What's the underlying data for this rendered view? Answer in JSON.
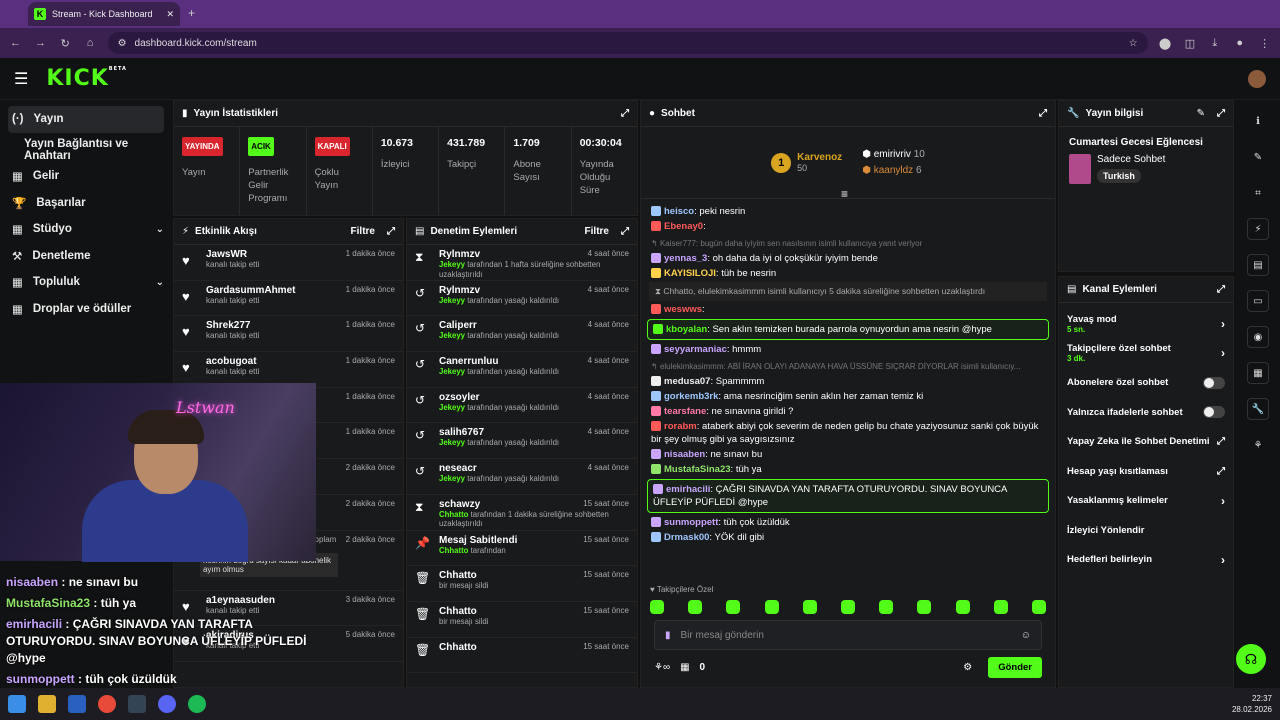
{
  "browser": {
    "tab_title": "Stream - Kick Dashboard",
    "url": "dashboard.kick.com/stream"
  },
  "header": {
    "logo": "KICK",
    "logo_tag": "BETA"
  },
  "nav": {
    "items": [
      {
        "label": "Yayın",
        "icon": "(·)"
      },
      {
        "label": "Yayın Bağlantısı ve Anahtarı",
        "icon": ""
      },
      {
        "label": "Gelir",
        "icon": "▦"
      },
      {
        "label": "Başarılar",
        "icon": "🏆"
      },
      {
        "label": "Stüdyo",
        "icon": "▦"
      },
      {
        "label": "Denetleme",
        "icon": "⚒"
      },
      {
        "label": "Topluluk",
        "icon": "▦"
      },
      {
        "label": "Droplar ve ödüller",
        "icon": "▦"
      }
    ]
  },
  "stats": {
    "title": "Yayın İstatistikleri",
    "cols": [
      {
        "badge": "YAYINDA",
        "badge_color": "#d9252d",
        "label": "Yayın"
      },
      {
        "badge": "ACIK",
        "badge_color": "#53fc18",
        "label": "Partnerlik Gelir Programı"
      },
      {
        "badge": "KAPALI",
        "badge_color": "#d9252d",
        "label": "Çoklu Yayın"
      },
      {
        "value": "10.673",
        "label": "İzleyici"
      },
      {
        "value": "431.789",
        "label": "Takipçi"
      },
      {
        "value": "1.709",
        "label": "Abone Sayısı"
      },
      {
        "value": "00:30:04",
        "label": "Yayında Olduğu Süre"
      }
    ]
  },
  "activity": {
    "title": "Etkinlik Akışı",
    "filter": "Filtre",
    "rows": [
      {
        "name": "JawsWR",
        "sub": "kanalı takip etti",
        "time": "1 dakika önce"
      },
      {
        "name": "GardasummAhmet",
        "sub": "kanalı takip etti",
        "time": "1 dakika önce"
      },
      {
        "name": "Shrek277",
        "sub": "kanalı takip etti",
        "time": "1 dakika önce"
      },
      {
        "name": "acobugoat",
        "sub": "kanalı takip etti",
        "time": "1 dakika önce"
      },
      {
        "name": "",
        "sub": "",
        "time": "1 dakika önce"
      },
      {
        "name": "",
        "sub": "",
        "time": "1 dakika önce"
      },
      {
        "name": "",
        "sub": "",
        "time": "2 dakika önce"
      },
      {
        "name": "",
        "sub": "",
        "time": "2 dakika önce"
      },
      {
        "name": "",
        "sub": "",
        "time": "2 dakika önce"
      },
      {
        "name": "a1eynaasuden",
        "sub": "kanalı takip etti",
        "time": "3 dakika önce"
      },
      {
        "name": "akiradirus",
        "sub": "kanalı takip etti",
        "time": "5 dakika önce"
      }
    ],
    "sub_note": "abonelik yenilemesini kutluyor! Toplam abonelik süresi - 25 ay!",
    "sub_msg": "nesrinin doğru sayısı kadar abonelik ayım olmus"
  },
  "moderation": {
    "title": "Denetim Eylemleri",
    "filter": "Filtre",
    "rows": [
      {
        "icon": "⧗",
        "name": "Rylnmzv",
        "by": "Jekeyy",
        "sub": "tarafından 1 hafta süreliğine sohbetten uzaklaştırıldı",
        "time": "4 saat önce"
      },
      {
        "icon": "↺",
        "name": "Rylnmzv",
        "by": "Jekeyy",
        "sub": "tarafından yasağı kaldırıldı",
        "time": "4 saat önce"
      },
      {
        "icon": "↺",
        "name": "Caliperr",
        "by": "Jekeyy",
        "sub": "tarafından yasağı kaldırıldı",
        "time": "4 saat önce"
      },
      {
        "icon": "↺",
        "name": "Canerrunluu",
        "by": "Jekeyy",
        "sub": "tarafından yasağı kaldırıldı",
        "time": "4 saat önce"
      },
      {
        "icon": "↺",
        "name": "ozsoyler",
        "by": "Jekeyy",
        "sub": "tarafından yasağı kaldırıldı",
        "time": "4 saat önce"
      },
      {
        "icon": "↺",
        "name": "salih6767",
        "by": "Jekeyy",
        "sub": "tarafından yasağı kaldırıldı",
        "time": "4 saat önce"
      },
      {
        "icon": "↺",
        "name": "neseacr",
        "by": "Jekeyy",
        "sub": "tarafından yasağı kaldırıldı",
        "time": "4 saat önce"
      },
      {
        "icon": "⧗",
        "name": "schawzy",
        "by": "Chhatto",
        "sub": "tarafından 1 dakika süreliğine sohbetten uzaklaştırıldı",
        "time": "15 saat önce"
      },
      {
        "icon": "📌",
        "name": "Mesaj Sabitlendi",
        "by": "Chhatto",
        "sub": "tarafından",
        "time": "15 saat önce"
      },
      {
        "icon": "🗑",
        "name": "Chhatto",
        "by": "",
        "sub": "bir mesajı sildi",
        "time": "15 saat önce"
      },
      {
        "icon": "🗑",
        "name": "Chhatto",
        "by": "",
        "sub": "bir mesajı sildi",
        "time": "15 saat önce"
      },
      {
        "icon": "🗑",
        "name": "Chhatto",
        "by": "",
        "sub": "",
        "time": "15 saat önce"
      }
    ]
  },
  "chat": {
    "title": "Sohbet",
    "leader": {
      "name": "Karvenoz",
      "value": "50"
    },
    "top2": {
      "name": "emirivriv",
      "value": "10"
    },
    "top3": {
      "name": "kaanyldz",
      "value": "6"
    },
    "messages": [
      {
        "user": "heisco",
        "color": "#9ec7ff",
        "text": "peki nesrin"
      },
      {
        "user": "Ebenay0",
        "color": "#ff5a5a",
        "text": ""
      },
      {
        "reply": "Kaiser777: bugün daha iyiyim sen nasılsının isimli kullanıcıya yanıt veriyor"
      },
      {
        "user": "yennas_3",
        "color": "#c9a5ff",
        "text": "oh daha da iyi ol çokşükür iyiyim bende"
      },
      {
        "user": "KAYISILOJI",
        "color": "#ffd24d",
        "text": "tüh be nesrin"
      },
      {
        "sys": "Chhatto, elulekimkasimmm isimli kullanıcıyı 5 dakika süreliğine sohbetten uzaklaştırdı"
      },
      {
        "user": "weswws",
        "color": "#ff5a5a",
        "text": ""
      },
      {
        "hl": true,
        "user": "kboyalan",
        "color": "#53fc18",
        "text": "Sen aklın temizken burada parrola oynuyordun ama nesrin @hype"
      },
      {
        "user": "seyyarmaniac",
        "color": "#c9a5ff",
        "text": "hmmm"
      },
      {
        "reply": "elulekimkasimmm: ABİ İRAN OLAYI ADANAYA HAVA ÜSSÜNE SIÇRAR DİYORLAR isimli kullanıcıy..."
      },
      {
        "user": "medusa07",
        "color": "#eee",
        "text": "Spammmm"
      },
      {
        "user": "gorkemb3rk",
        "color": "#9ec7ff",
        "text": "ama nesrinciğim senin aklın her zaman temiz ki"
      },
      {
        "user": "tearsfane",
        "color": "#ff7aa8",
        "text": "ne sınavına girildi ?"
      },
      {
        "user": "rorabm",
        "color": "#ff5a5a",
        "text": "ataberk abiyi çok severim de neden gelip bu chate yaziyosunuz sanki çok büyük bir şey olmuş gibi ya saygısızsınız"
      },
      {
        "user": "nisaaben",
        "color": "#c9a5ff",
        "text": "ne sınavı bu"
      },
      {
        "user": "MustafaSina23",
        "color": "#8fe36b",
        "text": "tüh ya"
      },
      {
        "hl": true,
        "user": "emirhacili",
        "color": "#c9a5ff",
        "text": "ÇAĞRI SINAVDA YAN TARAFTA OTURUYORDU. SINAV BOYUNCA ÜFLEYİP PÜFLEDİ @hype"
      },
      {
        "user": "sunmoppett",
        "color": "#c9a5ff",
        "text": "tüh çok üzüldük"
      },
      {
        "user": "Drmask00",
        "color": "#9ec7ff",
        "text": "YÖK dil gibi"
      }
    ],
    "followers_only": "Takipçilere Özel",
    "placeholder": "Bir mesaj gönderin",
    "points": "0",
    "send": "Gönder"
  },
  "info": {
    "title": "Yayın bilgisi",
    "stream_title": "Cumartesi Gecesi Eğlencesi",
    "category": "Sadece Sohbet",
    "tag": "Turkish"
  },
  "channel": {
    "title": "Kanal Eylemleri",
    "items": [
      {
        "label": "Yavaş mod",
        "sub": "5 sn.",
        "type": "chev"
      },
      {
        "label": "Takipçilere özel sohbet",
        "sub": "3 dk.",
        "type": "chev"
      },
      {
        "label": "Abonelere özel sohbet",
        "sub": "",
        "type": "toggle"
      },
      {
        "label": "Yalnızca ifadelerle sohbet",
        "sub": "",
        "type": "toggle"
      },
      {
        "label": "Yapay Zeka ile Sohbet Denetimi",
        "sub": "",
        "type": "ext"
      },
      {
        "label": "Hesap yaşı kısıtlaması",
        "sub": "",
        "type": "ext"
      },
      {
        "label": "Yasaklanmış kelimeler",
        "sub": "",
        "type": "chev"
      },
      {
        "label": "İzleyici Yönlendir",
        "sub": "",
        "type": "none"
      },
      {
        "label": "Hedefleri belirleyin",
        "sub": "",
        "type": "chev"
      }
    ]
  },
  "overlay": {
    "neon": "Lstwan",
    "chat": [
      {
        "user": "nisaaben",
        "color": "#c9a5ff",
        "text": " : ne sınavı bu"
      },
      {
        "user": "MustafaSina23",
        "color": "#8fe36b",
        "text": " : tüh ya"
      },
      {
        "user": "emirhacili",
        "color": "#c9a5ff",
        "text": " : ÇAĞRI SINAVDA YAN TARAFTA OTURUYORDU. SINAV BOYUNCA ÜFLEYİP PÜFLEDİ @hype"
      },
      {
        "user": "sunmoppett",
        "color": "#c9a5ff",
        "text": " : tüh çok üzüldük"
      }
    ]
  },
  "taskbar": {
    "time": "22:37",
    "date": "28.02.2026"
  }
}
